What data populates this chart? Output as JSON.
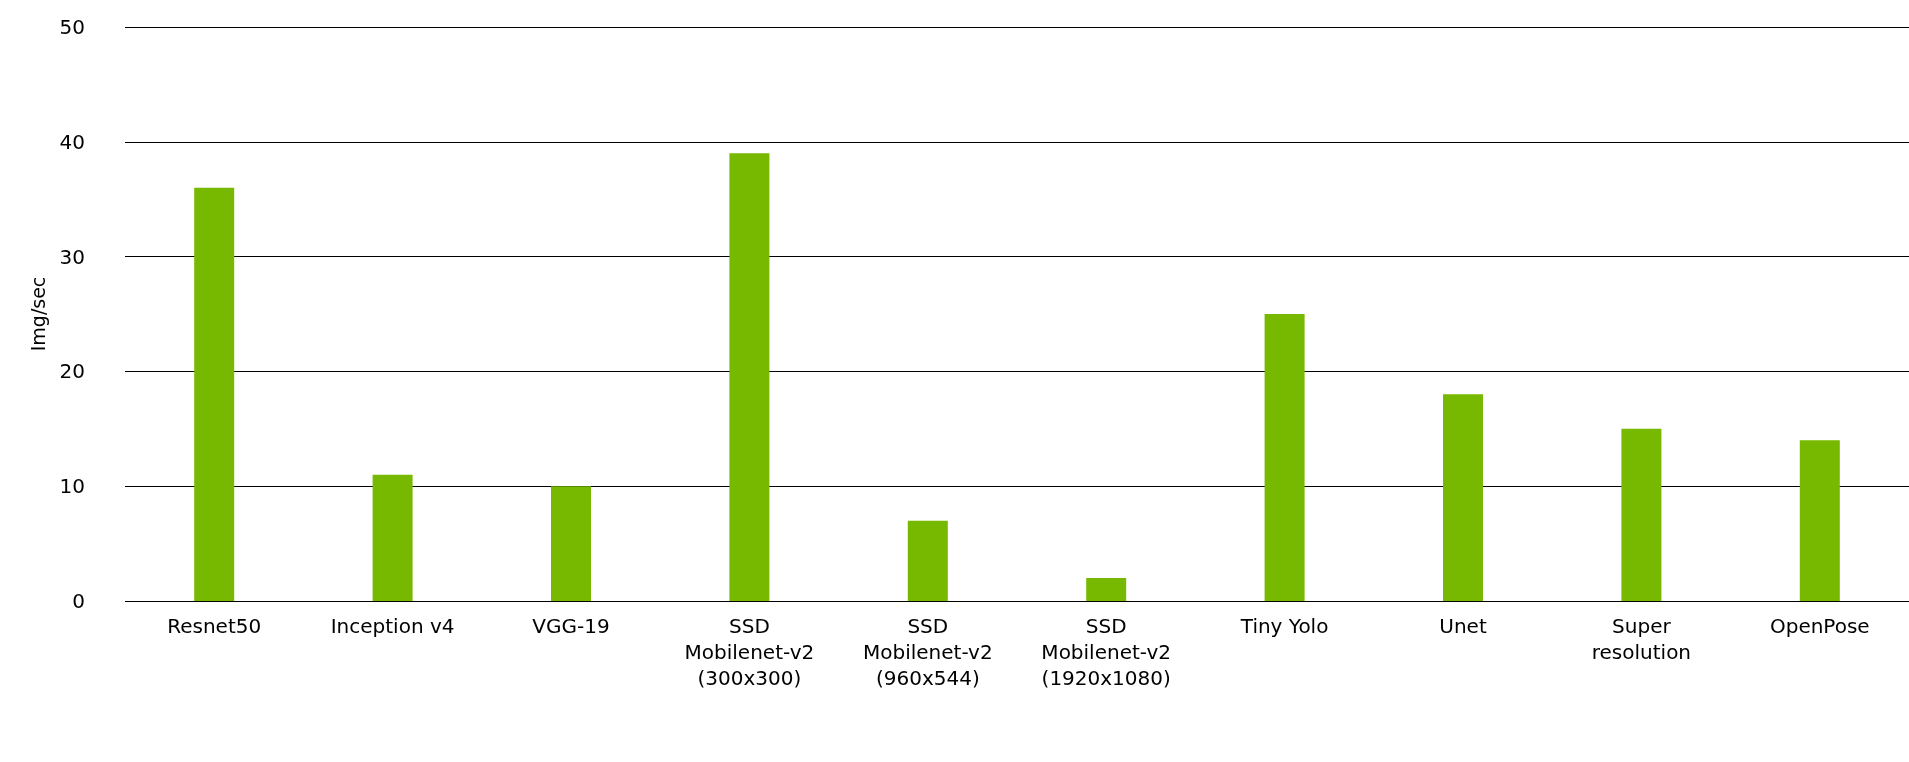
{
  "chart_data": {
    "type": "bar",
    "ylabel": "Img/sec",
    "categories": [
      "Resnet50",
      "Inception v4",
      "VGG-19",
      "SSD\nMobilenet-v2\n(300x300)",
      "SSD\nMobilenet-v2\n(960x544)",
      "SSD\nMobilenet-v2\n(1920x1080)",
      "Tiny Yolo",
      "Unet",
      "Super\nresolution",
      "OpenPose"
    ],
    "values": [
      36,
      11,
      10,
      39,
      7,
      2,
      25,
      18,
      15,
      14
    ],
    "color": "#76b900",
    "ylim": [
      0,
      50
    ],
    "yticks": [
      0,
      10,
      20,
      30,
      40,
      50
    ],
    "grid": "y"
  }
}
